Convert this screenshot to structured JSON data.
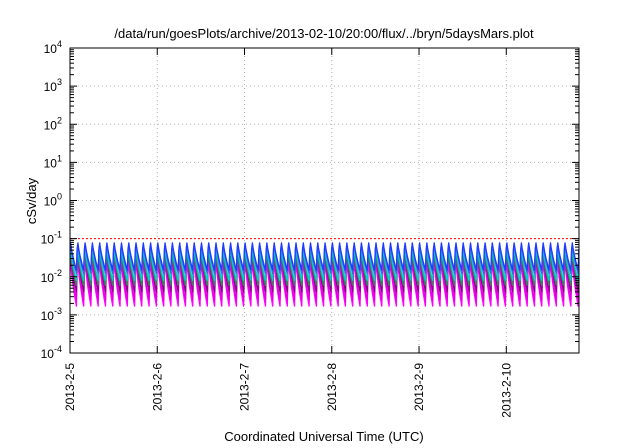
{
  "chart_data": {
    "type": "line",
    "title": "/data/run/goesPlots/archive/2013-02-10/20:00/flux/../bryn/5daysMars.plot",
    "xlabel": "Coordinated Universal Time (UTC)",
    "ylabel": "cSv/day",
    "yscale": "log",
    "ylim": [
      0.0001,
      10000
    ],
    "y_ticks": [
      {
        "value": 0.0001,
        "mantissa": "10",
        "exp": "-4"
      },
      {
        "value": 0.001,
        "mantissa": "10",
        "exp": "-3"
      },
      {
        "value": 0.01,
        "mantissa": "10",
        "exp": "-2"
      },
      {
        "value": 0.1,
        "mantissa": "10",
        "exp": "-1"
      },
      {
        "value": 1,
        "mantissa": "10",
        "exp": "0"
      },
      {
        "value": 10,
        "mantissa": "10",
        "exp": "1"
      },
      {
        "value": 100,
        "mantissa": "10",
        "exp": "2"
      },
      {
        "value": 1000,
        "mantissa": "10",
        "exp": "3"
      },
      {
        "value": 10000,
        "mantissa": "10",
        "exp": "4"
      }
    ],
    "xlim": [
      "2013-02-05 00:00",
      "2013-02-10 20:00"
    ],
    "x_ticks": [
      {
        "date": "2013-02-05",
        "label": "2013-2-5"
      },
      {
        "date": "2013-02-06",
        "label": "2013-2-6"
      },
      {
        "date": "2013-02-07",
        "label": "2013-2-7"
      },
      {
        "date": "2013-02-08",
        "label": "2013-2-8"
      },
      {
        "date": "2013-02-09",
        "label": "2013-2-9"
      },
      {
        "date": "2013-02-10",
        "label": "2013-2-10"
      }
    ],
    "grid": true,
    "cycles_per_day": 12,
    "series": [
      {
        "color": "#ff00ff",
        "peak": 0.035,
        "trough": 0.0017
      },
      {
        "color": "#e000e0",
        "peak": 0.045,
        "trough": 0.0025
      },
      {
        "color": "#8b008b",
        "peak": 0.06,
        "trough": 0.004
      },
      {
        "color": "#2e8b57",
        "peak": 0.05,
        "trough": 0.006
      },
      {
        "color": "#00ced1",
        "peak": 0.07,
        "trough": 0.008
      },
      {
        "color": "#4169e1",
        "peak": 0.09,
        "trough": 0.012
      },
      {
        "color": "#1e3cff",
        "peak": 0.1,
        "trough": 0.015
      }
    ],
    "threshold": {
      "value": 0.1,
      "color": "#ff0000"
    }
  }
}
